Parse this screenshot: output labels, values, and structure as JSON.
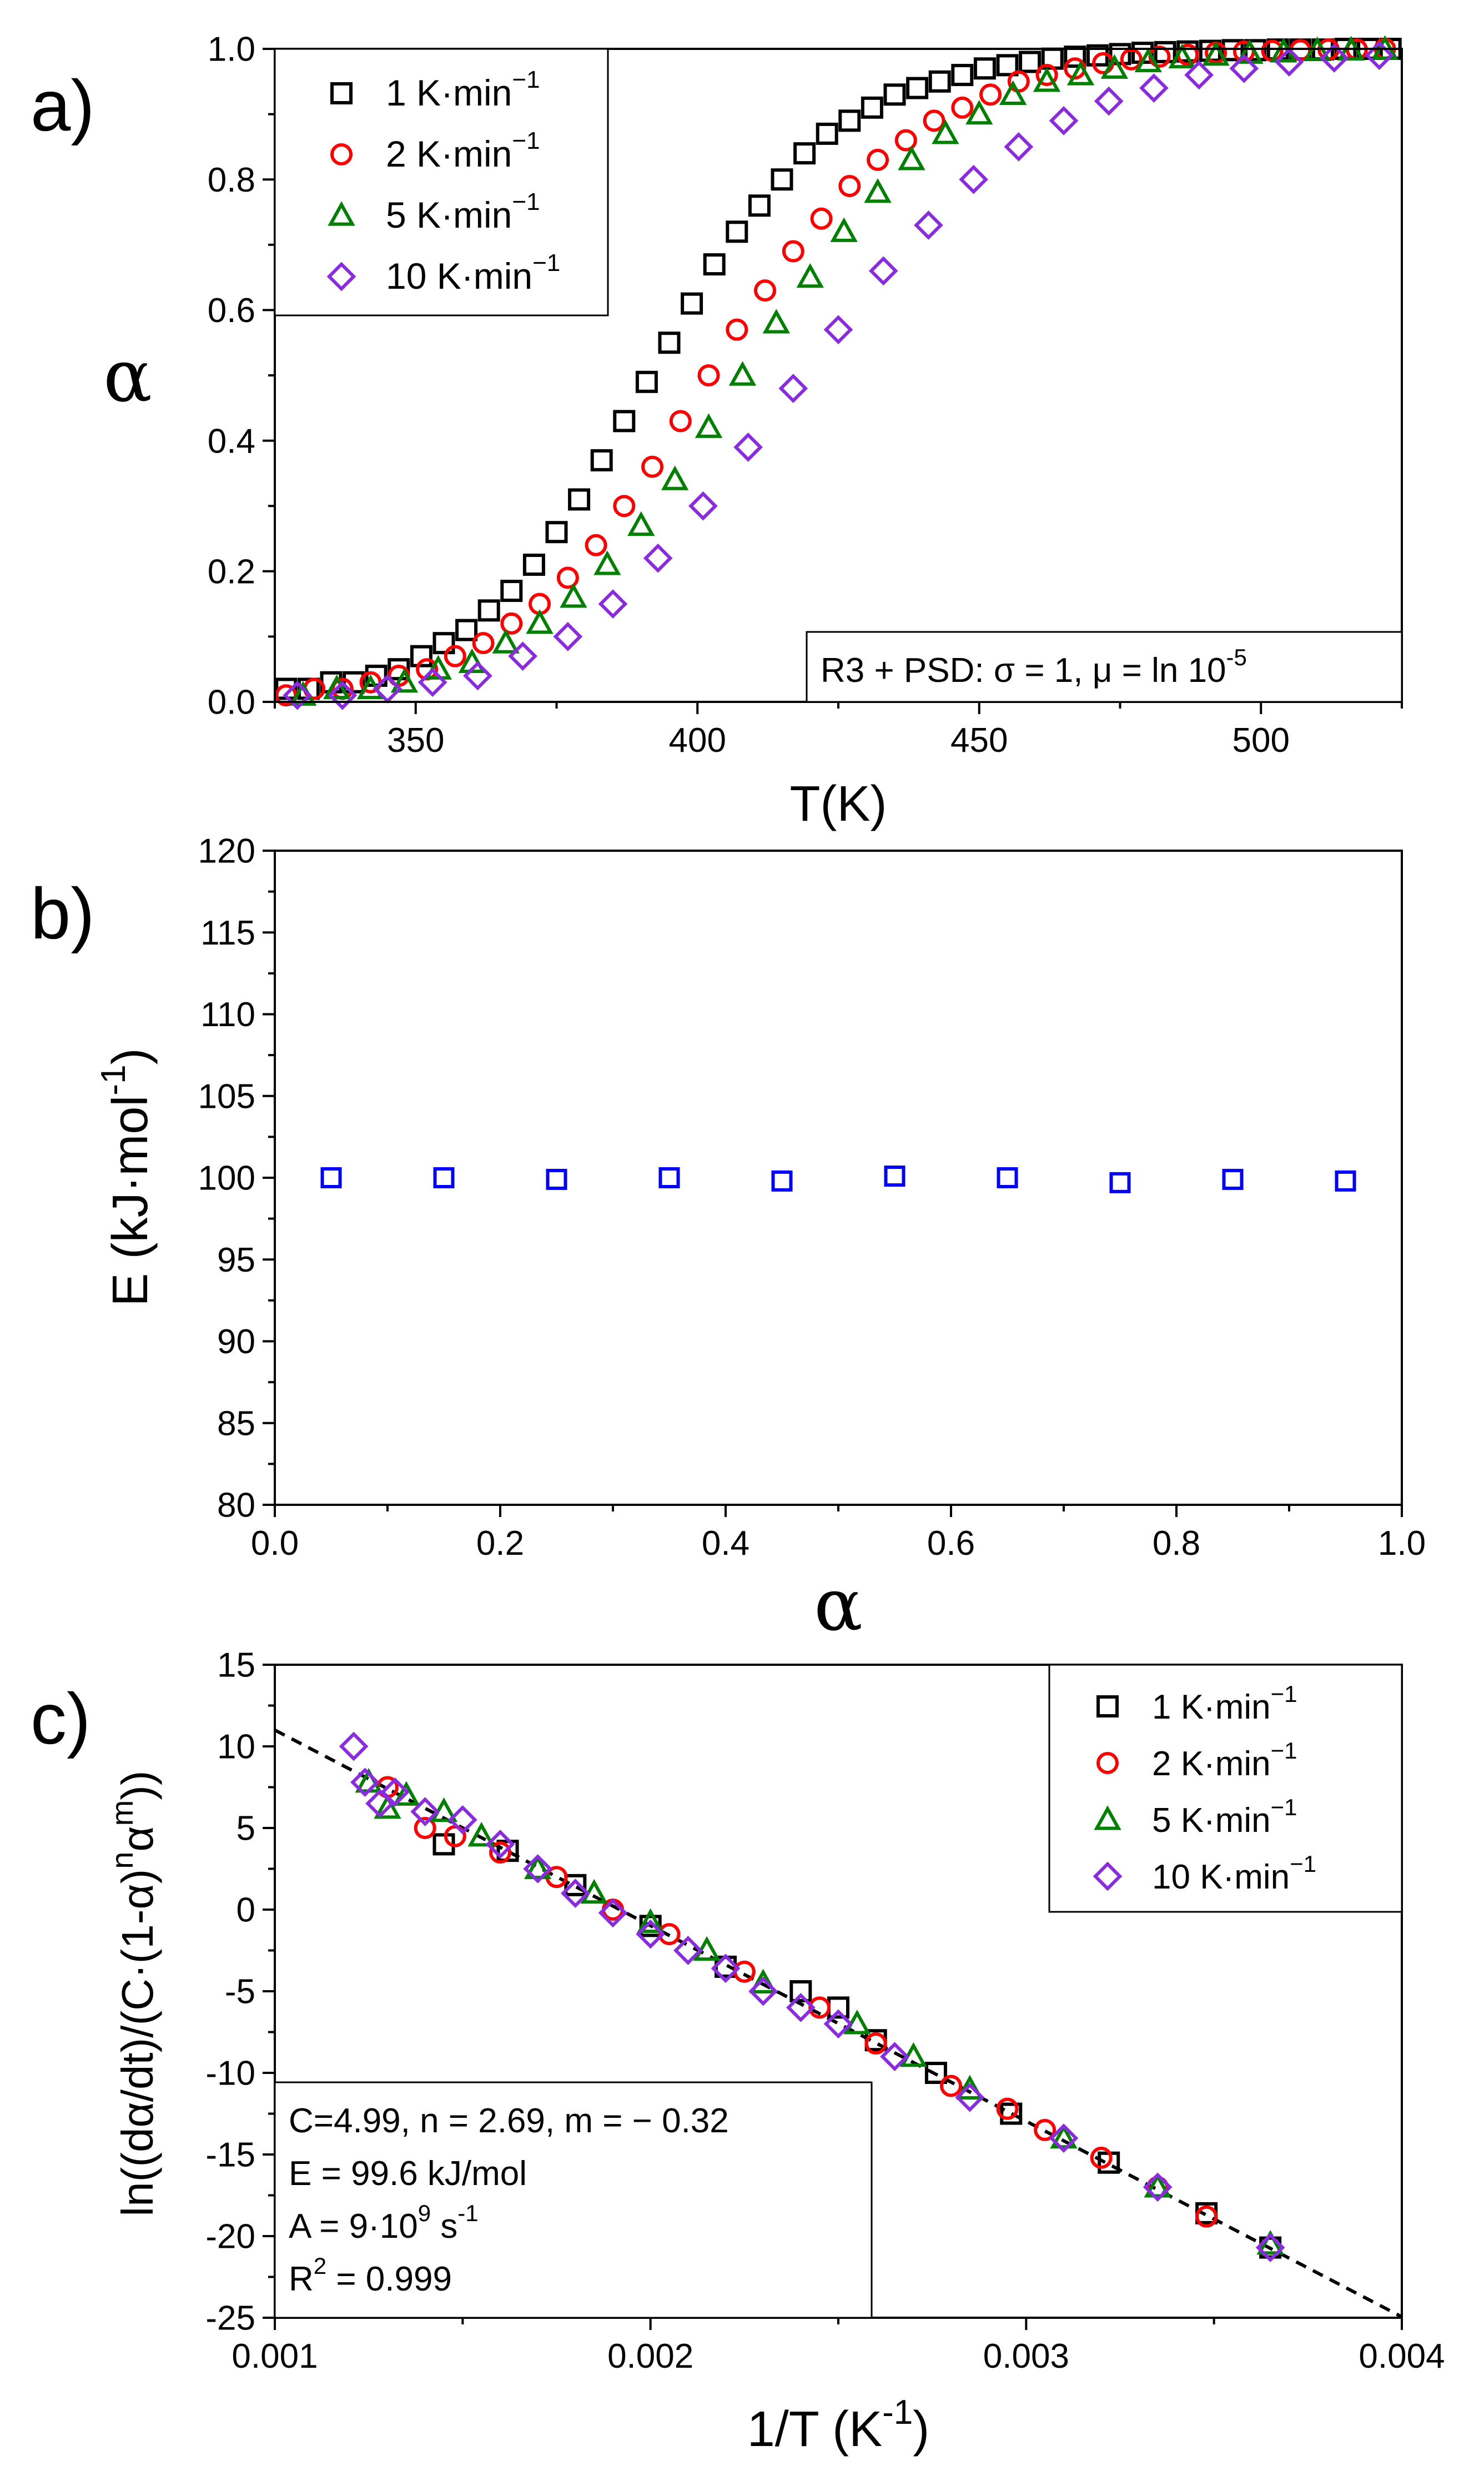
{
  "colors": {
    "s1": "#000000",
    "s2": "#ff0000",
    "s3": "#008000",
    "s4": "#8a2be2",
    "e": "#0000ff",
    "fit": "#000000"
  },
  "chart_data": [
    {
      "panel": "a)",
      "type": "scatter",
      "xlabel": "T(K)",
      "ylabel": "α",
      "xlim": [
        325,
        525
      ],
      "ylim": [
        0,
        1.0
      ],
      "xticks": [
        "350",
        "400",
        "450",
        "500"
      ],
      "yticks": [
        "0.0",
        "0.2",
        "0.4",
        "0.6",
        "0.8",
        "1.0"
      ],
      "legend_position": "top-left",
      "legend": [
        "1 K·min",
        "2 K·min",
        "5 K·min",
        "10 K·min"
      ],
      "legend_sup": "−1",
      "annotation": {
        "main": "R3 + PSD: σ = 1, μ = ln 10",
        "sup": "-5"
      },
      "series": [
        {
          "name": "1 K·min⁻¹",
          "marker": "square",
          "x": [
            327,
            331,
            335,
            339,
            343,
            347,
            351,
            355,
            359,
            363,
            367,
            371,
            375,
            379,
            383,
            387,
            391,
            395,
            399,
            403,
            407,
            411,
            415,
            419,
            423,
            427,
            431,
            435,
            439,
            443,
            447,
            451,
            455,
            459,
            463,
            467,
            471,
            475,
            479,
            483,
            487,
            491,
            495,
            499,
            503,
            507,
            511,
            515,
            519,
            523
          ],
          "y": [
            0.02,
            0.02,
            0.03,
            0.03,
            0.04,
            0.05,
            0.07,
            0.09,
            0.11,
            0.14,
            0.17,
            0.21,
            0.26,
            0.31,
            0.37,
            0.43,
            0.49,
            0.55,
            0.61,
            0.67,
            0.72,
            0.76,
            0.8,
            0.84,
            0.87,
            0.89,
            0.91,
            0.93,
            0.94,
            0.95,
            0.96,
            0.97,
            0.975,
            0.98,
            0.985,
            0.988,
            0.99,
            0.992,
            0.994,
            0.995,
            0.996,
            0.997,
            0.998,
            0.998,
            0.999,
            0.999,
            0.999,
            1.0,
            1.0,
            1.0
          ]
        },
        {
          "name": "2 K·min⁻¹",
          "marker": "circle",
          "x": [
            327,
            332,
            337,
            342,
            347,
            352,
            357,
            362,
            367,
            372,
            377,
            382,
            387,
            392,
            397,
            402,
            407,
            412,
            417,
            422,
            427,
            432,
            437,
            442,
            447,
            452,
            457,
            462,
            467,
            472,
            477,
            482,
            487,
            492,
            497,
            502,
            507,
            512,
            517,
            522
          ],
          "y": [
            0.01,
            0.02,
            0.02,
            0.03,
            0.04,
            0.05,
            0.07,
            0.09,
            0.12,
            0.15,
            0.19,
            0.24,
            0.3,
            0.36,
            0.43,
            0.5,
            0.57,
            0.63,
            0.69,
            0.74,
            0.79,
            0.83,
            0.86,
            0.89,
            0.91,
            0.93,
            0.95,
            0.96,
            0.97,
            0.978,
            0.984,
            0.988,
            0.991,
            0.994,
            0.996,
            0.997,
            0.998,
            0.999,
            0.999,
            1.0
          ]
        },
        {
          "name": "5 K·min⁻¹",
          "marker": "triangle",
          "x": [
            330,
            336,
            342,
            348,
            354,
            360,
            366,
            372,
            378,
            384,
            390,
            396,
            402,
            408,
            414,
            420,
            426,
            432,
            438,
            444,
            450,
            456,
            462,
            468,
            474,
            480,
            486,
            492,
            498,
            504,
            510,
            516,
            522
          ],
          "y": [
            0.01,
            0.02,
            0.02,
            0.03,
            0.05,
            0.06,
            0.09,
            0.12,
            0.16,
            0.21,
            0.27,
            0.34,
            0.42,
            0.5,
            0.58,
            0.65,
            0.72,
            0.78,
            0.83,
            0.87,
            0.9,
            0.93,
            0.95,
            0.96,
            0.97,
            0.98,
            0.986,
            0.99,
            0.993,
            0.995,
            0.997,
            0.998,
            0.999
          ]
        },
        {
          "name": "10 K·min⁻¹",
          "marker": "diamond",
          "x": [
            329,
            337,
            345,
            353,
            361,
            369,
            377,
            385,
            393,
            401,
            409,
            417,
            425,
            433,
            441,
            449,
            457,
            465,
            473,
            481,
            489,
            497,
            505,
            513,
            521
          ],
          "y": [
            0.01,
            0.01,
            0.02,
            0.03,
            0.04,
            0.07,
            0.1,
            0.15,
            0.22,
            0.3,
            0.39,
            0.48,
            0.57,
            0.66,
            0.73,
            0.8,
            0.85,
            0.89,
            0.92,
            0.94,
            0.96,
            0.97,
            0.98,
            0.986,
            0.99
          ]
        }
      ]
    },
    {
      "panel": "b)",
      "type": "scatter",
      "xlabel": "α",
      "ylabel": "E (kJ·mol",
      "ylabel_sup": "-1",
      "ylabel_close": ")",
      "xlim": [
        0.0,
        1.0
      ],
      "ylim": [
        80,
        120
      ],
      "xticks": [
        "0.0",
        "0.2",
        "0.4",
        "0.6",
        "0.8",
        "1.0"
      ],
      "yticks": [
        "80",
        "85",
        "90",
        "95",
        "100",
        "105",
        "110",
        "115",
        "120"
      ],
      "series": [
        {
          "name": "E",
          "marker": "square",
          "x": [
            0.05,
            0.15,
            0.25,
            0.35,
            0.45,
            0.55,
            0.65,
            0.75,
            0.85,
            0.95
          ],
          "y": [
            100.0,
            100.0,
            99.9,
            100.0,
            99.8,
            100.1,
            100.0,
            99.7,
            99.9,
            99.8
          ]
        }
      ]
    },
    {
      "panel": "c)",
      "type": "scatter",
      "xlabel": "1/T (K",
      "xlabel_sup": "-1",
      "xlabel_close": ")",
      "ylabel": "ln((dα/dt)/(C·(1-α)",
      "ylabel_sup_n": "n",
      "ylabel_mid": "α",
      "ylabel_sup_m": "m",
      "ylabel_close": "))",
      "xlim": [
        0.001,
        0.004
      ],
      "ylim": [
        -25,
        15
      ],
      "xticks": [
        "0.001",
        "0.002",
        "0.003",
        "0.004"
      ],
      "yticks": [
        "-25",
        "-20",
        "-15",
        "-10",
        "-5",
        "0",
        "5",
        "10",
        "15"
      ],
      "legend_position": "top-right",
      "legend": [
        "1 K·min",
        "2 K·min",
        "5 K·min",
        "10 K·min"
      ],
      "legend_sup": "−1",
      "fit_line": {
        "slope": -11981,
        "intercept": 22.98,
        "x": [
          0.001,
          0.004
        ]
      },
      "annotation": {
        "line1": "C=4.99, n = 2.69, m = − 0.32",
        "line2": "E = 99.6 kJ/mol",
        "line3_main": "A = 9·10",
        "line3_sup": "9",
        "line3_unit": " s",
        "line3_unit_sup": "-1",
        "line4_main": "R",
        "line4_sup": "2",
        "line4_rest": " = 0.999"
      },
      "series": [
        {
          "name": "1 K·min⁻¹",
          "marker": "square",
          "x": [
            0.00145,
            0.00162,
            0.0018,
            0.002,
            0.0022,
            0.0024,
            0.0025,
            0.0026,
            0.00276,
            0.00296,
            0.00322,
            0.00348,
            0.00365
          ],
          "y": [
            4.0,
            3.6,
            1.5,
            -1.0,
            -3.5,
            -5.0,
            -6.0,
            -8.0,
            -10.0,
            -12.5,
            -15.5,
            -18.6,
            -20.7
          ]
        },
        {
          "name": "2 K·min⁻¹",
          "marker": "circle",
          "x": [
            0.0013,
            0.0014,
            0.00148,
            0.0016,
            0.00175,
            0.0019,
            0.00205,
            0.00225,
            0.00245,
            0.0026,
            0.0028,
            0.00295,
            0.00305,
            0.0032,
            0.00335,
            0.00348
          ],
          "y": [
            7.5,
            5.0,
            4.5,
            3.5,
            2.0,
            0.0,
            -1.5,
            -3.8,
            -6.0,
            -8.2,
            -10.8,
            -12.2,
            -13.5,
            -15.2,
            -17.0,
            -18.8
          ]
        },
        {
          "name": "5 K·min⁻¹",
          "marker": "triangle",
          "x": [
            0.00125,
            0.0013,
            0.00135,
            0.00145,
            0.00155,
            0.0017,
            0.00185,
            0.002,
            0.00215,
            0.0023,
            0.00255,
            0.0027,
            0.00285,
            0.0031,
            0.00335,
            0.00365
          ],
          "y": [
            7.8,
            6.2,
            7.0,
            6.0,
            4.5,
            2.5,
            1.0,
            -0.8,
            -2.5,
            -4.5,
            -7.0,
            -9.0,
            -11.0,
            -14.0,
            -17.0,
            -20.5
          ]
        },
        {
          "name": "10 K·min⁻¹",
          "marker": "diamond",
          "x": [
            0.00121,
            0.00124,
            0.00128,
            0.00132,
            0.0014,
            0.0015,
            0.0016,
            0.0017,
            0.0018,
            0.0019,
            0.002,
            0.0021,
            0.0022,
            0.0023,
            0.0024,
            0.0025,
            0.00265,
            0.00285,
            0.0031,
            0.00335,
            0.00365
          ],
          "y": [
            10.0,
            7.8,
            6.5,
            7.2,
            6.0,
            5.5,
            4.0,
            2.5,
            1.0,
            -0.2,
            -1.5,
            -2.5,
            -3.6,
            -5.0,
            -6.0,
            -7.0,
            -9.0,
            -11.5,
            -14.0,
            -17.0,
            -20.7
          ]
        }
      ]
    }
  ]
}
